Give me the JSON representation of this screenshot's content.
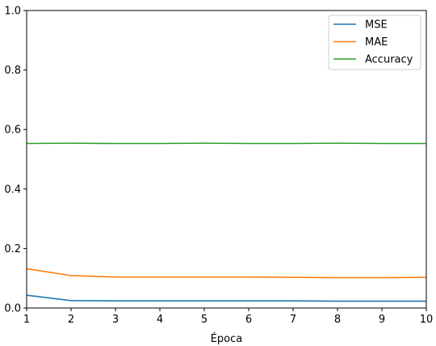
{
  "chart_data": {
    "type": "line",
    "title": "",
    "xlabel": "Época",
    "ylabel": "",
    "xlim": [
      1,
      10
    ],
    "ylim": [
      0.0,
      1.0
    ],
    "x": [
      1,
      2,
      3,
      4,
      5,
      6,
      7,
      8,
      9,
      10
    ],
    "xticks": [
      "1",
      "2",
      "3",
      "4",
      "5",
      "6",
      "7",
      "8",
      "9",
      "10"
    ],
    "yticks": [
      "0.0",
      "0.2",
      "0.4",
      "0.6",
      "0.8",
      "1.0"
    ],
    "legend_position": "top-right",
    "grid": false,
    "series": [
      {
        "name": "MSE",
        "color": "#1f77b4",
        "values": [
          0.043,
          0.025,
          0.024,
          0.024,
          0.024,
          0.024,
          0.024,
          0.023,
          0.023,
          0.023
        ]
      },
      {
        "name": "MAE",
        "color": "#ff7f0e",
        "values": [
          0.132,
          0.109,
          0.104,
          0.104,
          0.104,
          0.104,
          0.103,
          0.102,
          0.102,
          0.103
        ]
      },
      {
        "name": "Accuracy",
        "color": "#2ca02c",
        "values": [
          0.553,
          0.554,
          0.553,
          0.553,
          0.554,
          0.553,
          0.553,
          0.554,
          0.553,
          0.553
        ]
      }
    ]
  }
}
